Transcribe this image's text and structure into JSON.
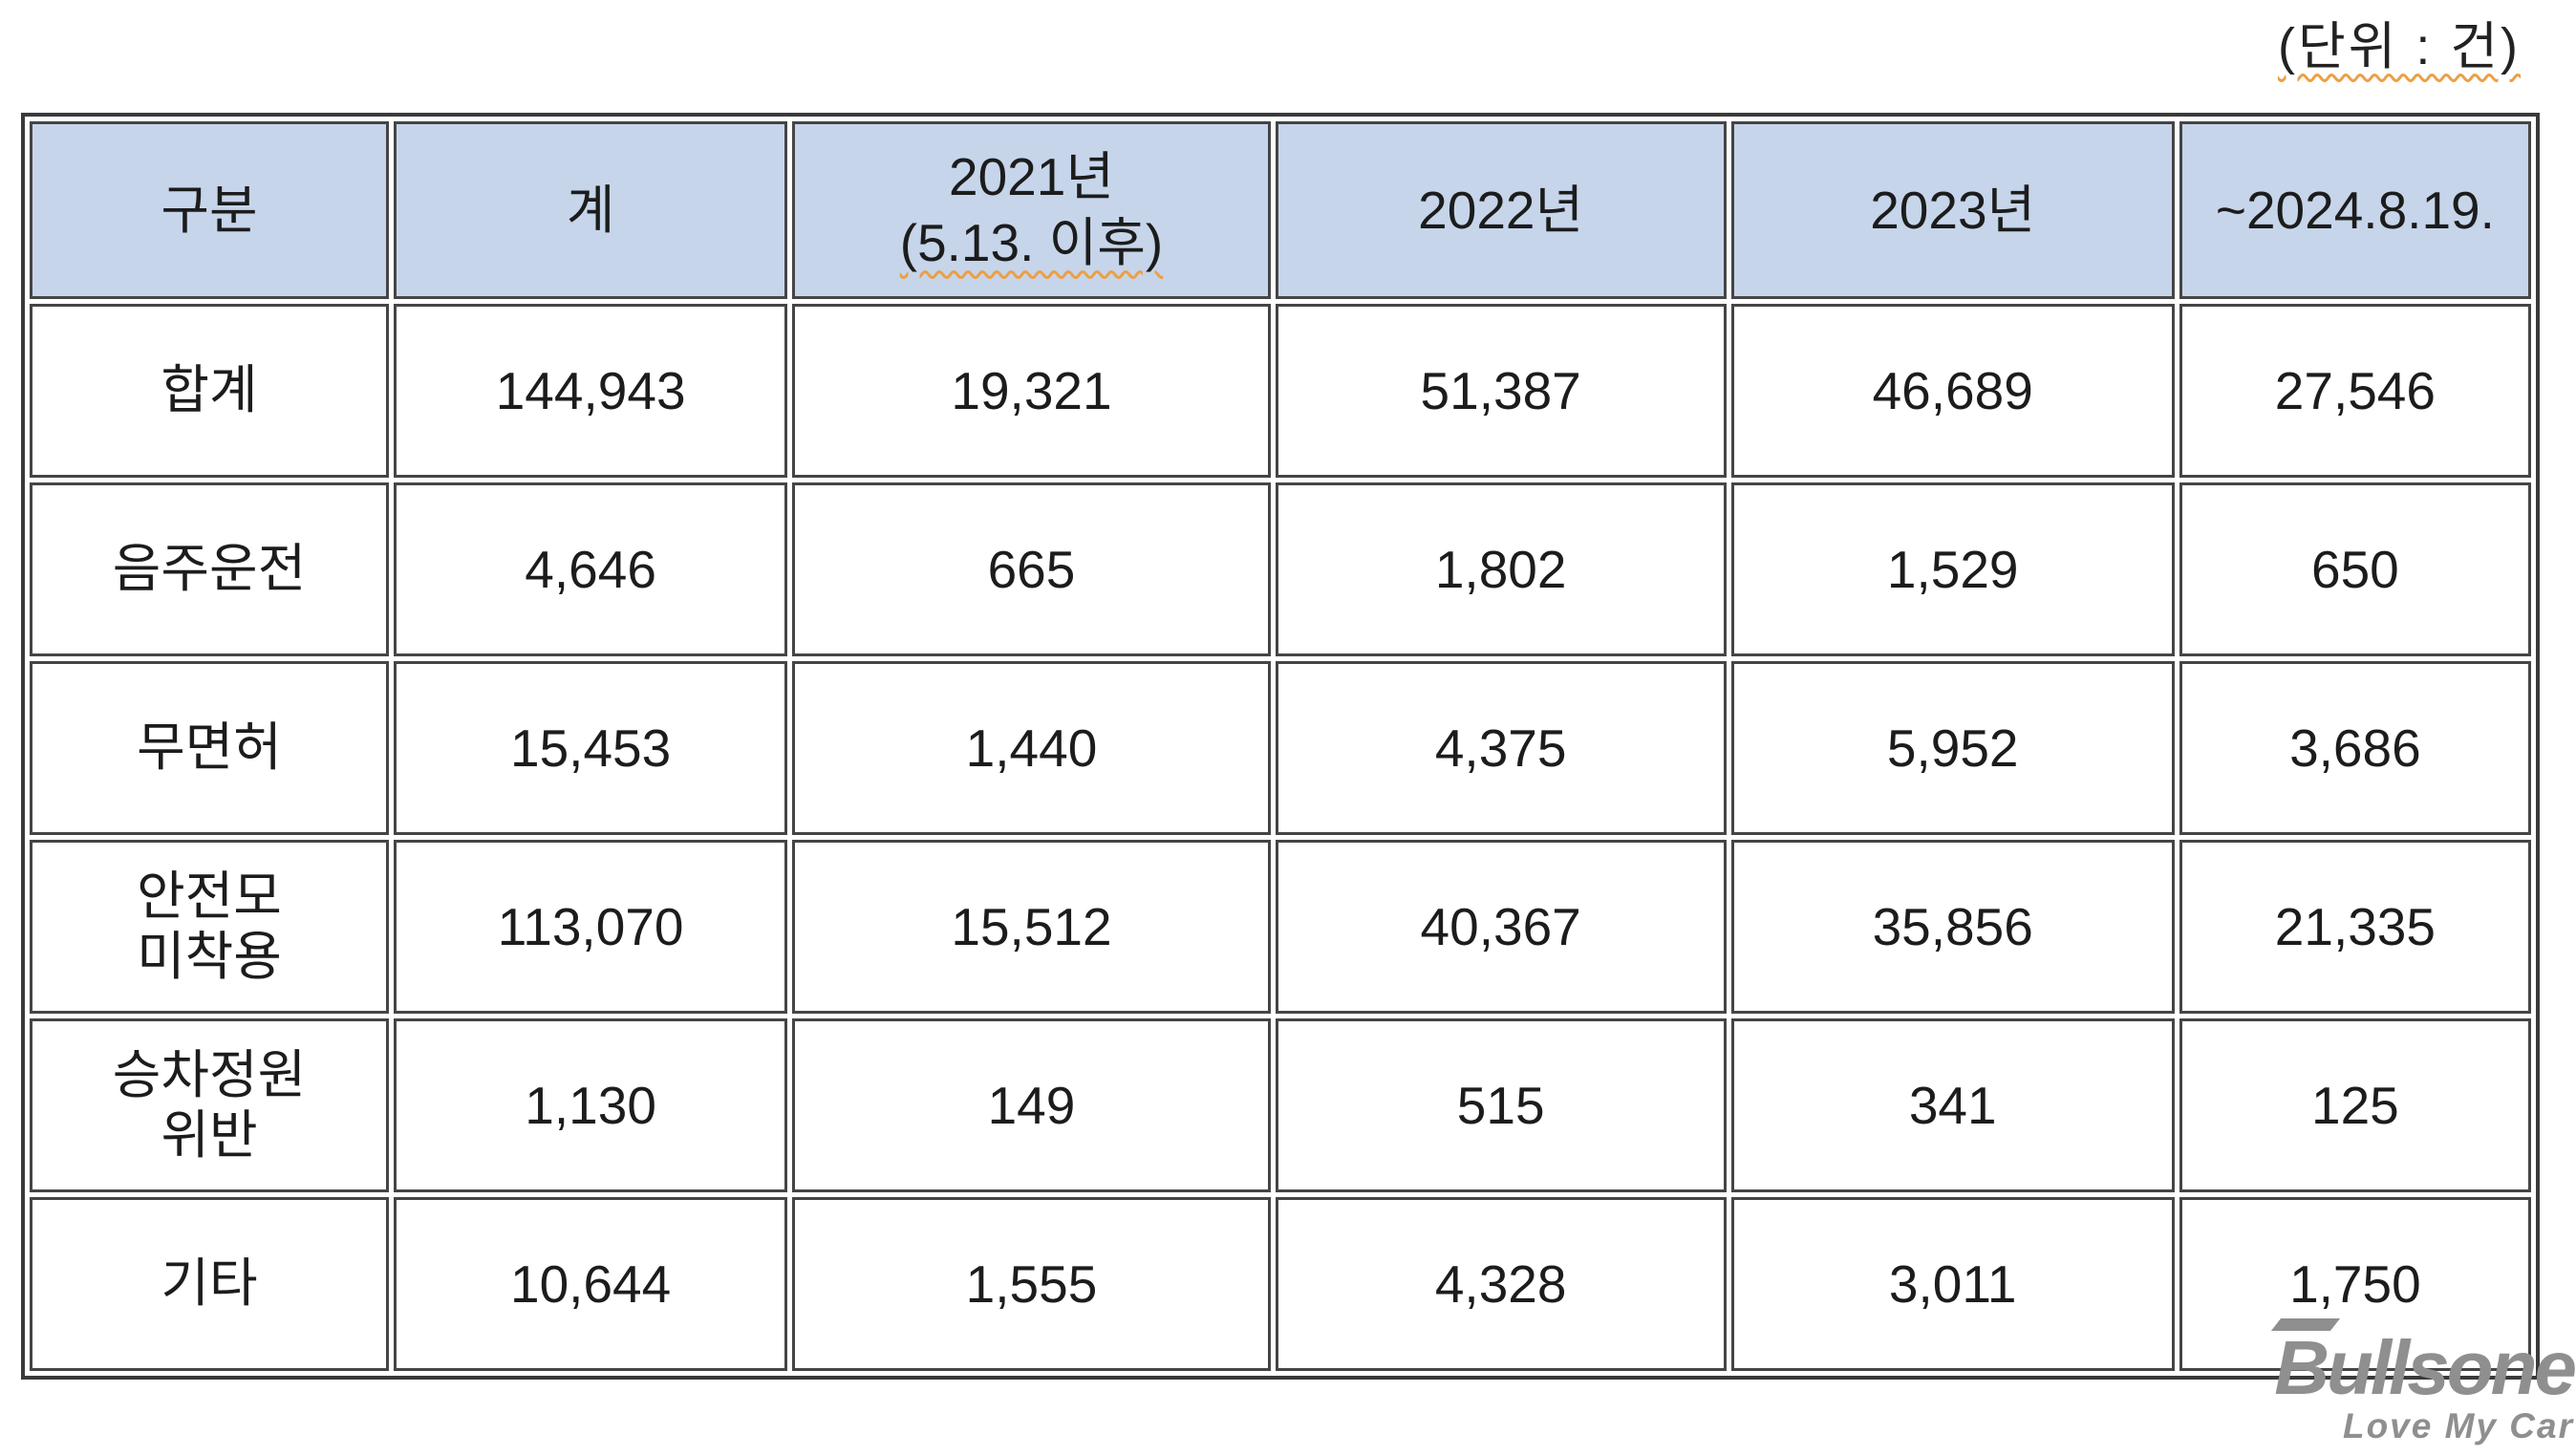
{
  "unit_label": "(단위 : 건)",
  "table": {
    "header": {
      "col1": "구분",
      "col2": "계",
      "col3_line1": "2021년",
      "col3_line2": "(5.13. 이후)",
      "col4": "2022년",
      "col5": "2023년",
      "col6": "~2024.8.19."
    },
    "rows": [
      {
        "label": "합계",
        "values": [
          "144,943",
          "19,321",
          "51,387",
          "46,689",
          "27,546"
        ]
      },
      {
        "label": "음주운전",
        "values": [
          "4,646",
          "665",
          "1,802",
          "1,529",
          "650"
        ]
      },
      {
        "label": "무면허",
        "values": [
          "15,453",
          "1,440",
          "4,375",
          "5,952",
          "3,686"
        ]
      },
      {
        "label": "안전모\n미착용",
        "values": [
          "113,070",
          "15,512",
          "40,367",
          "35,856",
          "21,335"
        ]
      },
      {
        "label": "승차정원\n위반",
        "values": [
          "1,130",
          "149",
          "515",
          "341",
          "125"
        ]
      },
      {
        "label": "기타",
        "values": [
          "10,644",
          "1,555",
          "4,328",
          "3,011",
          "1,750"
        ]
      }
    ]
  },
  "watermark": {
    "brand": "Bullsone",
    "tagline": "Love My Car"
  },
  "colors": {
    "header_bg": "#c6d5ea",
    "border": "#454545",
    "squiggle_underline": "#ec9f45",
    "watermark_gray": "#8f8f8f"
  },
  "chart_data": {
    "type": "table",
    "title": "",
    "unit": "건",
    "columns": [
      "구분",
      "계",
      "2021년 (5.13. 이후)",
      "2022년",
      "2023년",
      "~2024.8.19."
    ],
    "rows": [
      {
        "category": "합계",
        "total": 144943,
        "y2021_after_5_13": 19321,
        "y2022": 51387,
        "y2023": 46689,
        "to_2024_8_19": 27546
      },
      {
        "category": "음주운전",
        "total": 4646,
        "y2021_after_5_13": 665,
        "y2022": 1802,
        "y2023": 1529,
        "to_2024_8_19": 650
      },
      {
        "category": "무면허",
        "total": 15453,
        "y2021_after_5_13": 1440,
        "y2022": 4375,
        "y2023": 5952,
        "to_2024_8_19": 3686
      },
      {
        "category": "안전모 미착용",
        "total": 113070,
        "y2021_after_5_13": 15512,
        "y2022": 40367,
        "y2023": 35856,
        "to_2024_8_19": 21335
      },
      {
        "category": "승차정원 위반",
        "total": 1130,
        "y2021_after_5_13": 149,
        "y2022": 515,
        "y2023": 341,
        "to_2024_8_19": 125
      },
      {
        "category": "기타",
        "total": 10644,
        "y2021_after_5_13": 1555,
        "y2022": 4328,
        "y2023": 3011,
        "to_2024_8_19": 1750
      }
    ]
  }
}
